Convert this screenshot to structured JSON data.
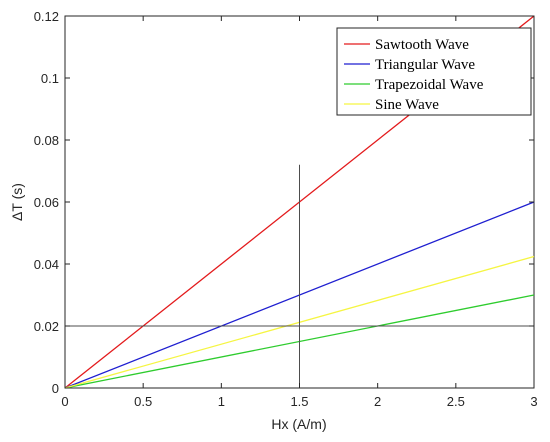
{
  "chart_data": {
    "type": "line",
    "xlabel": "Hx (A/m)",
    "ylabel": "ΔT (s)",
    "xlim": [
      0,
      3
    ],
    "ylim": [
      0,
      0.12
    ],
    "x_ticks": [
      0,
      0.5,
      1,
      1.5,
      2,
      2.5,
      3
    ],
    "x_tick_labels": [
      "0",
      "0.5",
      "1",
      "1.5",
      "2",
      "2.5",
      "3"
    ],
    "y_ticks": [
      0,
      0.02,
      0.04,
      0.06,
      0.08,
      0.1,
      0.12
    ],
    "y_tick_labels": [
      "0",
      "0.02",
      "0.04",
      "0.06",
      "0.08",
      "0.1",
      "0.12"
    ],
    "grid": false,
    "legend_position": "top-right",
    "series": [
      {
        "name": "Sawtooth Wave",
        "color": "#e31a1c",
        "x": [
          0,
          3
        ],
        "y": [
          0,
          0.12
        ]
      },
      {
        "name": "Triangular Wave",
        "color": "#1f1fd0",
        "x": [
          0,
          3
        ],
        "y": [
          0,
          0.06
        ]
      },
      {
        "name": "Trapezoidal Wave",
        "color": "#2ecc2e",
        "x": [
          0,
          3
        ],
        "y": [
          0,
          0.03
        ]
      },
      {
        "name": "Sine Wave",
        "color": "#f5f542",
        "x": [
          0,
          3
        ],
        "y": [
          0,
          0.0424
        ]
      }
    ],
    "reference_lines": [
      {
        "orientation": "vertical",
        "x": 1.5,
        "y_range": [
          0,
          0.072
        ],
        "color": "#4d4d4d"
      },
      {
        "orientation": "horizontal",
        "y": 0.02,
        "x_range": [
          0,
          3
        ],
        "color": "#4d4d4d"
      }
    ]
  }
}
